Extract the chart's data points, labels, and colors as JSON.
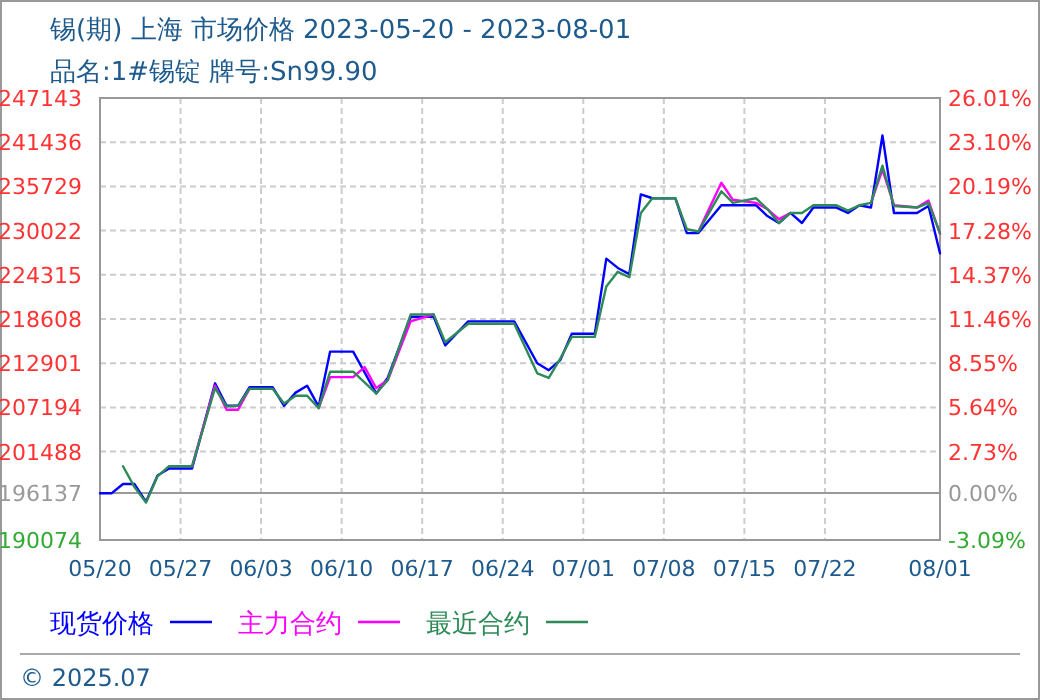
{
  "chart_data": {
    "type": "line",
    "title": "锡(期) 上海 市场价格 2023-05-20 - 2023-08-01",
    "subtitle": "品名:1#锡锭 牌号:Sn99.90",
    "annotations": [
      "© 2025.07"
    ],
    "xlim": [
      "2023-05-20",
      "2023-08-01"
    ],
    "xticks": [
      {
        "value": "2023-05-20",
        "label": "05/20"
      },
      {
        "value": "2023-05-27",
        "label": "05/27"
      },
      {
        "value": "2023-06-03",
        "label": "06/03"
      },
      {
        "value": "2023-06-10",
        "label": "06/10"
      },
      {
        "value": "2023-06-17",
        "label": "06/17"
      },
      {
        "value": "2023-06-24",
        "label": "06/24"
      },
      {
        "value": "2023-07-01",
        "label": "07/01"
      },
      {
        "value": "2023-07-08",
        "label": "07/08"
      },
      {
        "value": "2023-07-15",
        "label": "07/15"
      },
      {
        "value": "2023-07-22",
        "label": "07/22"
      },
      {
        "value": "2023-08-01",
        "label": "08/01"
      }
    ],
    "ylim": [
      190074,
      247143
    ],
    "yticks": [
      190074,
      196137,
      201488,
      207194,
      212901,
      218608,
      224315,
      230022,
      235729,
      241436,
      247143
    ],
    "y2lim": [
      -3.09,
      26.01
    ],
    "y2ticks": [
      {
        "value": -3.09,
        "label": "-3.09%"
      },
      {
        "value": 0,
        "label": "0.00%"
      },
      {
        "value": 2.73,
        "label": "2.73%"
      },
      {
        "value": 5.64,
        "label": "5.64%"
      },
      {
        "value": 8.55,
        "label": "8.55%"
      },
      {
        "value": 11.46,
        "label": "11.46%"
      },
      {
        "value": 14.37,
        "label": "14.37%"
      },
      {
        "value": 17.28,
        "label": "17.28%"
      },
      {
        "value": 20.19,
        "label": "20.19%"
      },
      {
        "value": 23.1,
        "label": "23.10%"
      },
      {
        "value": 26.01,
        "label": "26.01%"
      }
    ],
    "ref_lines": [
      {
        "axis": "y",
        "value": 196137,
        "color": "#999999",
        "line_style": "solid"
      }
    ],
    "grid": true,
    "legend": "bottom",
    "marker": "none",
    "line_style": "solid",
    "series": [
      {
        "name": "现货价格",
        "color": "#0000ff",
        "x": [
          "2023-05-20",
          "2023-05-21",
          "2023-05-22",
          "2023-05-23",
          "2023-05-24",
          "2023-05-25",
          "2023-05-26",
          "2023-05-28",
          "2023-05-30",
          "2023-05-31",
          "2023-06-01",
          "2023-06-02",
          "2023-06-04",
          "2023-06-05",
          "2023-06-06",
          "2023-06-07",
          "2023-06-08",
          "2023-06-09",
          "2023-06-11",
          "2023-06-13",
          "2023-06-14",
          "2023-06-16",
          "2023-06-18",
          "2023-06-19",
          "2023-06-21",
          "2023-06-25",
          "2023-06-27",
          "2023-06-28",
          "2023-06-29",
          "2023-06-30",
          "2023-07-02",
          "2023-07-03",
          "2023-07-04",
          "2023-07-05",
          "2023-07-06",
          "2023-07-07",
          "2023-07-09",
          "2023-07-10",
          "2023-07-11",
          "2023-07-13",
          "2023-07-16",
          "2023-07-17",
          "2023-07-18",
          "2023-07-19",
          "2023-07-20",
          "2023-07-21",
          "2023-07-23",
          "2023-07-24",
          "2023-07-25",
          "2023-07-26",
          "2023-07-27",
          "2023-07-28",
          "2023-07-30",
          "2023-07-31",
          "2023-08-01"
        ],
        "values": [
          196100,
          196100,
          197300,
          197300,
          195000,
          198400,
          199300,
          199300,
          210300,
          207400,
          207400,
          209800,
          209800,
          207400,
          209100,
          210000,
          207300,
          214400,
          214400,
          209000,
          211000,
          218900,
          218900,
          215200,
          218300,
          218300,
          212900,
          212000,
          213300,
          216700,
          216700,
          226400,
          225200,
          224400,
          234700,
          234200,
          234200,
          229700,
          229700,
          233300,
          233300,
          231900,
          231000,
          232300,
          231000,
          233000,
          233000,
          232300,
          233300,
          233000,
          242300,
          232300,
          232300,
          233200,
          227100
        ]
      },
      {
        "name": "主力合约",
        "color": "#ff00ff",
        "x": [
          "2023-05-28",
          "2023-05-30",
          "2023-05-31",
          "2023-06-01",
          "2023-06-02",
          null,
          "2023-06-08",
          "2023-06-09",
          "2023-06-11",
          "2023-06-12",
          "2023-06-13",
          "2023-06-14",
          "2023-06-16",
          "2023-06-18",
          null,
          "2023-07-11",
          "2023-07-13",
          "2023-07-14",
          "2023-07-16",
          "2023-07-17",
          "2023-07-18",
          "2023-07-19",
          null,
          "2023-07-26",
          "2023-07-27",
          "2023-07-28",
          "2023-07-30",
          "2023-07-31",
          "2023-08-01"
        ],
        "values": [
          199600,
          210000,
          206900,
          206900,
          209600,
          null,
          207100,
          211100,
          211100,
          212400,
          209700,
          210700,
          218300,
          219200,
          null,
          229900,
          236200,
          234000,
          233600,
          232800,
          231500,
          232300,
          null,
          233600,
          237900,
          233300,
          233000,
          233900,
          229600
        ]
      },
      {
        "name": "最近合约",
        "color": "#2e8b57",
        "x": [
          "2023-05-22",
          "2023-05-23",
          "2023-05-24",
          "2023-05-25",
          "2023-05-26",
          "2023-05-28",
          "2023-05-30",
          "2023-05-31",
          "2023-06-01",
          "2023-06-02",
          "2023-06-04",
          "2023-06-05",
          "2023-06-06",
          "2023-06-07",
          "2023-06-08",
          "2023-06-09",
          "2023-06-11",
          "2023-06-13",
          "2023-06-14",
          "2023-06-16",
          "2023-06-18",
          "2023-06-19",
          "2023-06-21",
          "2023-06-25",
          "2023-06-27",
          "2023-06-28",
          "2023-06-29",
          "2023-06-30",
          "2023-07-02",
          "2023-07-03",
          "2023-07-04",
          "2023-07-05",
          "2023-07-06",
          "2023-07-07",
          "2023-07-09",
          "2023-07-10",
          "2023-07-11",
          "2023-07-13",
          "2023-07-14",
          "2023-07-16",
          "2023-07-17",
          "2023-07-18",
          "2023-07-19",
          "2023-07-20",
          "2023-07-21",
          "2023-07-23",
          "2023-07-24",
          "2023-07-25",
          "2023-07-26",
          "2023-07-27",
          "2023-07-28",
          "2023-07-30",
          "2023-07-31",
          "2023-08-01"
        ],
        "values": [
          199600,
          196900,
          194900,
          198300,
          199600,
          199600,
          209700,
          207300,
          207400,
          209600,
          209600,
          207700,
          208700,
          208700,
          207100,
          211800,
          211800,
          209000,
          210700,
          219200,
          219200,
          215600,
          218000,
          218000,
          211600,
          211000,
          213500,
          216300,
          216300,
          222800,
          224700,
          224000,
          232300,
          234200,
          234200,
          230200,
          229900,
          235100,
          233600,
          234200,
          232800,
          231000,
          232300,
          232300,
          233300,
          233300,
          232600,
          233300,
          233600,
          238400,
          233200,
          233000,
          233600,
          229700
        ]
      }
    ]
  }
}
